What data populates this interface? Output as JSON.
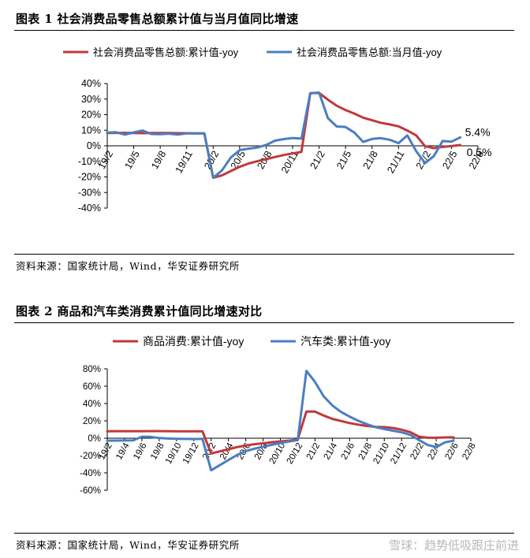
{
  "figure1": {
    "title": "图表 1 社会消费品零售总额累计值与当月值同比增速",
    "source": "资料来源：国家统计局，Wind，华安证券研究所"
  },
  "figure2": {
    "title": "图表 2 商品和汽车类消费累计值同比增速对比",
    "source": "资料来源：国家统计局，Wind，华安证券研究所"
  },
  "watermark": "雪球：趋势低吸跟庄前进",
  "colors": {
    "red": "#c0393b",
    "blue": "#4a7ec2"
  },
  "chart_data": [
    {
      "type": "line",
      "ylim": [
        -40,
        40
      ],
      "yticks": [
        -40,
        -30,
        -20,
        -10,
        0,
        10,
        20,
        30,
        40
      ],
      "ytick_format": "percent",
      "x_start": "19/2",
      "x_end": "22/8",
      "xtick_labels": [
        "19/2",
        "19/5",
        "19/8",
        "19/11",
        "20/2",
        "20/5",
        "20/8",
        "20/11",
        "21/2",
        "21/5",
        "21/8",
        "21/11",
        "22/2",
        "22/5",
        "22/8"
      ],
      "legend_position": "top",
      "annotations": [
        "5.4%",
        "0.5%"
      ],
      "series": [
        {
          "name": "社会消费品零售总额:累计值-yoy",
          "color": "#c0393b",
          "values": [
            8.2,
            8.3,
            8.3,
            8.2,
            8.1,
            8.2,
            8.2,
            8.2,
            8.1,
            8.1,
            8.0,
            8.0,
            -20.5,
            -19.0,
            -16.2,
            -13.5,
            -11.4,
            -9.9,
            -8.6,
            -7.2,
            -5.9,
            -4.9,
            -3.9,
            33.8,
            33.9,
            29.6,
            25.7,
            23.0,
            20.7,
            18.1,
            16.4,
            14.8,
            13.7,
            12.5,
            9.8,
            6.7,
            -0.2,
            -1.5,
            -0.7,
            -0.2,
            0.5
          ]
        },
        {
          "name": "社会消费品零售总额:当月值-yoy",
          "color": "#4a7ec2",
          "values": [
            8.5,
            8.7,
            7.2,
            8.6,
            9.8,
            7.6,
            7.5,
            7.8,
            7.2,
            8.0,
            8.0,
            8.0,
            -20.5,
            -15.8,
            -7.5,
            -2.8,
            -1.8,
            -1.1,
            0.5,
            3.3,
            4.3,
            5.0,
            4.6,
            33.8,
            34.2,
            17.7,
            12.4,
            12.1,
            8.5,
            2.5,
            4.4,
            4.9,
            3.9,
            1.7,
            6.7,
            -3.5,
            -11.1,
            -6.7,
            3.1,
            2.7,
            5.4
          ]
        }
      ]
    },
    {
      "type": "line",
      "ylim": [
        -60,
        80
      ],
      "yticks": [
        -60,
        -40,
        -20,
        0,
        20,
        40,
        60,
        80
      ],
      "ytick_format": "percent",
      "x_start": "19/2",
      "x_end": "22/8",
      "xtick_labels": [
        "19/2",
        "19/4",
        "19/6",
        "19/8",
        "19/10",
        "19/12",
        "20/2",
        "20/4",
        "20/6",
        "20/8",
        "20/10",
        "20/12",
        "21/2",
        "21/4",
        "21/6",
        "21/8",
        "21/10",
        "21/12",
        "22/2",
        "22/4",
        "22/6",
        "22/8"
      ],
      "legend_position": "top",
      "series": [
        {
          "name": "商品消费:累计值-yoy",
          "color": "#c0393b",
          "values": [
            8.0,
            8.2,
            8.1,
            8.1,
            8.1,
            8.2,
            8.2,
            8.1,
            8.0,
            8.0,
            7.9,
            7.9,
            -17.6,
            -15.2,
            -12.7,
            -10.3,
            -8.4,
            -6.9,
            -5.9,
            -4.6,
            -3.6,
            -2.8,
            -1.6,
            30.8,
            30.6,
            26.2,
            22.3,
            19.8,
            17.5,
            15.6,
            14.1,
            13.1,
            12.8,
            11.8,
            9.8,
            7.0,
            1.8,
            0.5,
            0.5,
            0.9,
            1.0
          ]
        },
        {
          "name": "汽车类:累计值-yoy",
          "color": "#4a7ec2",
          "values": [
            -2.8,
            -2.7,
            -2.6,
            -2.5,
            1.7,
            1.5,
            0.2,
            -0.4,
            -0.6,
            -0.8,
            -0.9,
            -0.8,
            -37.0,
            -31.1,
            -25.1,
            -19.5,
            -14.9,
            -12.1,
            -9.8,
            -7.6,
            -5.5,
            -3.8,
            -2.2,
            77.6,
            64.9,
            48.3,
            37.8,
            30.3,
            24.9,
            20.1,
            16.1,
            12.7,
            10.5,
            8.6,
            6.8,
            3.8,
            -2.0,
            -7.8,
            -10.2,
            -4.8,
            -2.8
          ]
        }
      ]
    }
  ]
}
